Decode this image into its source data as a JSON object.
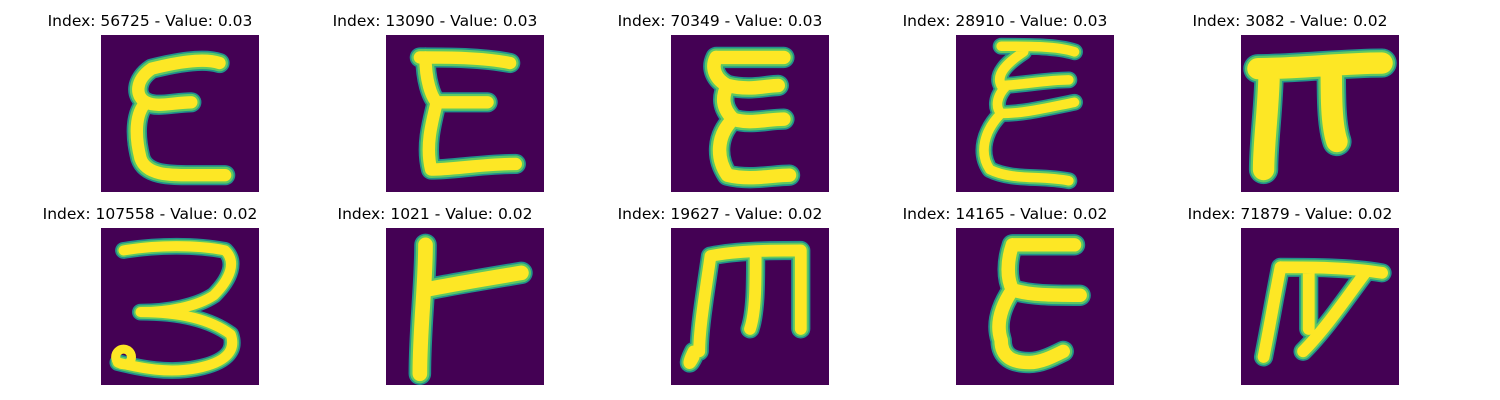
{
  "colormap": {
    "background": "#440154",
    "edge": "#21918c",
    "mid": "#5ec962",
    "ink": "#fde725"
  },
  "samples": [
    {
      "title": "Index: 56725 - Value: 0.03",
      "glyph": "E-like"
    },
    {
      "title": "Index: 13090 - Value: 0.03",
      "glyph": "E-like"
    },
    {
      "title": "Index: 70349 - Value: 0.03",
      "glyph": "E-like"
    },
    {
      "title": "Index: 28910 - Value: 0.03",
      "glyph": "E-like"
    },
    {
      "title": "Index: 3082 - Value: 0.02",
      "glyph": "pi-like"
    },
    {
      "title": "Index: 107558 - Value: 0.02",
      "glyph": "3-like"
    },
    {
      "title": "Index: 1021 - Value: 0.02",
      "glyph": "T-like"
    },
    {
      "title": "Index: 19627 - Value: 0.02",
      "glyph": "m-like"
    },
    {
      "title": "Index: 14165 - Value: 0.02",
      "glyph": "E-like"
    },
    {
      "title": "Index: 71879 - Value: 0.02",
      "glyph": "pi-like"
    }
  ]
}
